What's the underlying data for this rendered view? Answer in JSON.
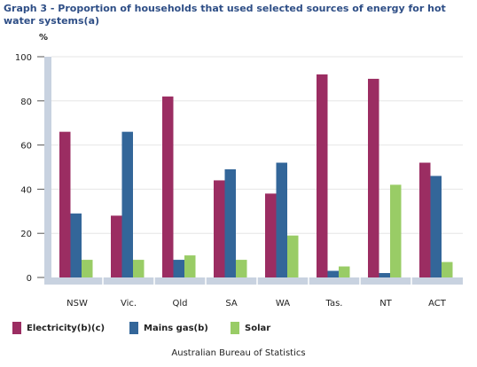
{
  "title": "Graph 3 - Proportion of households that used selected sources of energy for hot water systems(a)",
  "source": "Australian Bureau of Statistics",
  "chart_data": {
    "type": "bar",
    "title": "Graph 3 - Proportion of households that used selected sources of energy for hot water systems(a)",
    "ylabel": "%",
    "xlabel": "",
    "ylim": [
      0,
      100
    ],
    "yticks": [
      0,
      20,
      40,
      60,
      80,
      100
    ],
    "grid": true,
    "legend": "bottom",
    "categories": [
      "NSW",
      "Vic.",
      "Qld",
      "SA",
      "WA",
      "Tas.",
      "NT",
      "ACT"
    ],
    "series": [
      {
        "name": "Electricity(b)(c)",
        "color": "#9b2d62",
        "values": [
          66,
          28,
          82,
          44,
          38,
          92,
          90,
          52
        ]
      },
      {
        "name": "Mains gas(b)",
        "color": "#336699",
        "values": [
          29,
          66,
          8,
          49,
          52,
          3,
          2,
          46
        ]
      },
      {
        "name": "Solar",
        "color": "#99cc66",
        "values": [
          8,
          8,
          10,
          8,
          19,
          5,
          42,
          7
        ]
      }
    ]
  }
}
